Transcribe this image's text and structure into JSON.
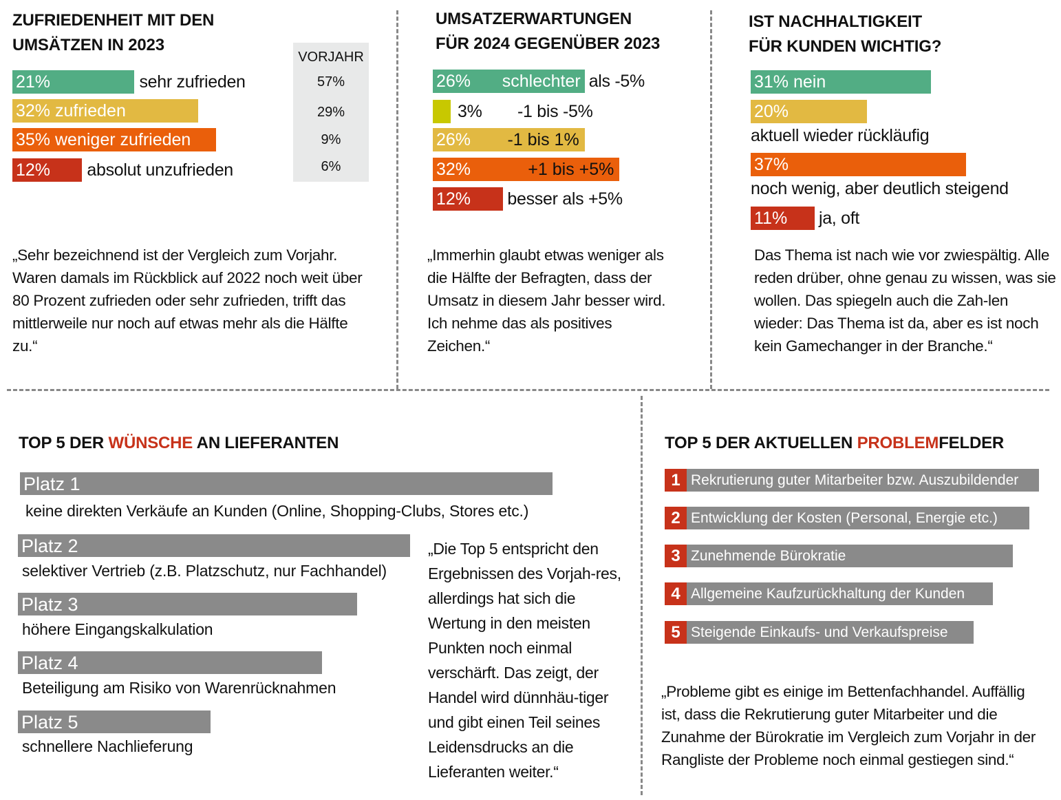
{
  "colors": {
    "green": "#52ad84",
    "yellow": "#e2b942",
    "lime": "#c8c800",
    "orange": "#ea5f0b",
    "red": "#c7321a",
    "gray": "#8a8a8a"
  },
  "chart_data": [
    {
      "type": "bar",
      "title": "ZUFRIEDENHEIT MIT DEN UMSÄTZEN IN 2023",
      "categories": [
        "sehr zufrieden",
        "zufrieden",
        "weniger zufrieden",
        "absolut unzufrieden"
      ],
      "values": [
        21,
        32,
        35,
        12
      ],
      "value_labels": [
        "21%",
        "32%",
        "35%",
        "12%"
      ],
      "previous_year_header": "VORJAHR",
      "previous_year": [
        57,
        29,
        9,
        6
      ],
      "previous_year_labels": [
        "57%",
        "29%",
        "9%",
        "6%"
      ],
      "bar_colors": [
        "#52ad84",
        "#e2b942",
        "#ea5f0b",
        "#c7321a"
      ]
    },
    {
      "type": "bar",
      "title": "UMSATZERWARTUNGEN FÜR 2024 GEGENÜBER 2023",
      "categories": [
        "schlechter als -5%",
        "-1 bis -5%",
        "-1 bis 1%",
        "+1 bis +5%",
        "besser als +5%"
      ],
      "values": [
        26,
        3,
        26,
        32,
        12
      ],
      "value_labels": [
        "26%",
        "3%",
        "26%",
        "32%",
        "12%"
      ],
      "bar_colors": [
        "#52ad84",
        "#c8c800",
        "#e2b942",
        "#ea5f0b",
        "#c7321a"
      ]
    },
    {
      "type": "bar",
      "title": "IST NACHHALTIGKEIT FÜR KUNDEN WICHTIG?",
      "categories": [
        "nein",
        "aktuell wieder rückläufig",
        "noch wenig, aber deutlich steigend",
        "ja, oft"
      ],
      "values": [
        31,
        20,
        37,
        11
      ],
      "value_labels": [
        "31%",
        "20%",
        "37%",
        "11%"
      ],
      "bar_colors": [
        "#52ad84",
        "#e2b942",
        "#ea5f0b",
        "#c7321a"
      ]
    }
  ],
  "panel1": {
    "title1": "ZUFRIEDENHEIT MIT DEN",
    "title2": "UMSÄTZEN IN 2023",
    "quote": "„Sehr bezeichnend ist der Vergleich zum Vorjahr. Waren damals im Rückblick auf 2022 noch weit über 80 Prozent zufrieden oder sehr zufrieden, trifft das mittlerweile nur noch auf etwas mehr als die Hälfte zu.“"
  },
  "panel2": {
    "title1": "UMSATZERWARTUNGEN",
    "title2": "FÜR 2024 GEGENÜBER 2023",
    "row1_in": "schlechter",
    "row1_out": "als -5%",
    "quote": "„Immerhin glaubt etwas weniger als die Hälfte der Befragten, dass der Umsatz in diesem Jahr besser wird. Ich nehme das als positives Zeichen.“"
  },
  "panel3": {
    "title1": "IST NACHHALTIGKEIT",
    "title2": "FÜR KUNDEN WICHTIG?",
    "quote": "Das Thema ist nach wie vor zwiespältig. Alle reden drüber, ohne genau zu wissen, was sie wollen. Das spiegeln auch die Zah-len wieder: Das Thema ist da, aber es ist noch kein Gamechanger in der Branche.“"
  },
  "wishes": {
    "title_a": "TOP 5 DER ",
    "title_b": "WÜNSCHE",
    "title_c": " AN LIEFERANTEN",
    "items": [
      {
        "rank": "Platz 1",
        "text": "keine direkten Verkäufe an Kunden (Online, Shopping-Clubs, Stores etc.)"
      },
      {
        "rank": "Platz 2",
        "text": "selektiver Vertrieb (z.B. Platzschutz, nur Fachhandel)"
      },
      {
        "rank": "Platz 3",
        "text": "höhere Eingangskalkulation"
      },
      {
        "rank": "Platz 4",
        "text": "Beteiligung am Risiko von Warenrücknahmen"
      },
      {
        "rank": "Platz 5",
        "text": "schnellere Nachlieferung"
      }
    ],
    "quote": "„Die Top 5 entspricht den Ergebnissen des Vorjah-res, allerdings hat sich die Wertung in den meisten Punkten noch einmal verschärft. Das zeigt, der Handel wird dünnhäu-tiger und gibt einen Teil seines Leidensdrucks an die Lieferanten weiter.“"
  },
  "problems": {
    "title_a": "TOP 5 DER AKTUELLEN ",
    "title_b": "PROBLEM",
    "title_c": "FELDER",
    "items": [
      {
        "n": "1",
        "text": "Rekrutierung guter Mitarbeiter bzw. Auszubildender"
      },
      {
        "n": "2",
        "text": "Entwicklung der Kosten (Personal, Energie etc.)"
      },
      {
        "n": "3",
        "text": "Zunehmende Bürokratie"
      },
      {
        "n": "4",
        "text": "Allgemeine Kaufzurückhaltung der Kunden"
      },
      {
        "n": "5",
        "text": "Steigende Einkaufs- und Verkaufspreise"
      }
    ],
    "quote": "„Probleme gibt es einige im Bettenfachhandel. Auffällig ist, dass die Rekrutierung guter Mitarbeiter und die Zunahme der Bürokratie im Vergleich zum Vorjahr in der Rangliste der Probleme noch einmal gestiegen sind.“"
  }
}
